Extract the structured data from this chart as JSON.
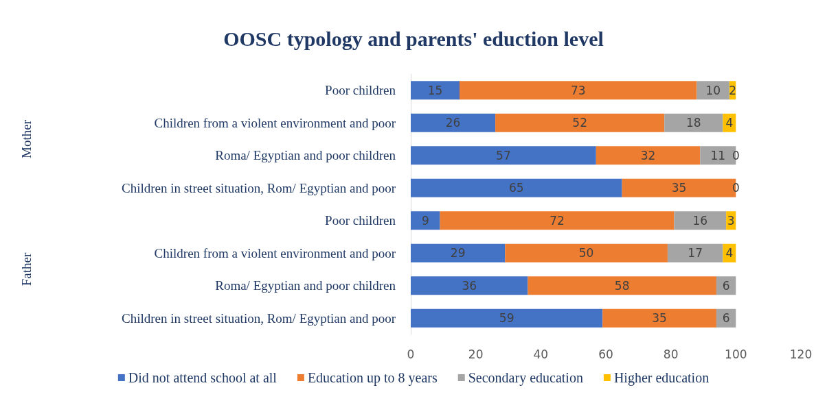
{
  "chart_data": {
    "type": "bar",
    "orientation": "horizontal",
    "stacked": true,
    "title": "OOSC typology and parents' eduction level",
    "categories": [
      "Poor children",
      "Children from a violent environment and poor",
      "Roma/ Egyptian and poor children",
      "Children in street situation, Rom/ Egyptian and poor",
      "Poor children",
      "Children from a violent environment and poor",
      "Roma/ Egyptian and poor children",
      "Children in street situation, Rom/ Egyptian and poor"
    ],
    "annotations": [
      "Mother",
      "Father"
    ],
    "series": [
      {
        "name": "Did not attend school at all",
        "color": "#4472c4",
        "values": [
          15,
          26,
          57,
          65,
          9,
          29,
          36,
          59
        ],
        "value_labels": [
          "15",
          "26",
          "57",
          "65",
          "9",
          "29",
          "36",
          "59"
        ]
      },
      {
        "name": "Education up to 8 years",
        "color": "#ed7d31",
        "values": [
          73,
          52,
          32,
          35,
          72,
          50,
          58,
          35
        ],
        "value_labels": [
          "73",
          "52",
          "32",
          "35",
          "72",
          "50",
          "58",
          "35"
        ]
      },
      {
        "name": "Secondary education",
        "color": "#a5a5a5",
        "values": [
          10,
          18,
          11,
          0,
          16,
          17,
          6,
          6
        ],
        "value_labels": [
          "10",
          "18",
          "11",
          null,
          "16",
          "17",
          "6",
          "6"
        ]
      },
      {
        "name": "Higher education",
        "color": "#ffc000",
        "values": [
          2,
          4,
          0,
          0,
          3,
          4,
          null,
          null
        ],
        "value_labels": [
          "2",
          "4",
          "0",
          "0",
          "3",
          "4",
          null,
          null
        ]
      }
    ],
    "xlim": [
      0,
      120
    ],
    "xticks": [
      0,
      20,
      40,
      60,
      80,
      100,
      120
    ],
    "grid": false,
    "legend": "bottom"
  }
}
